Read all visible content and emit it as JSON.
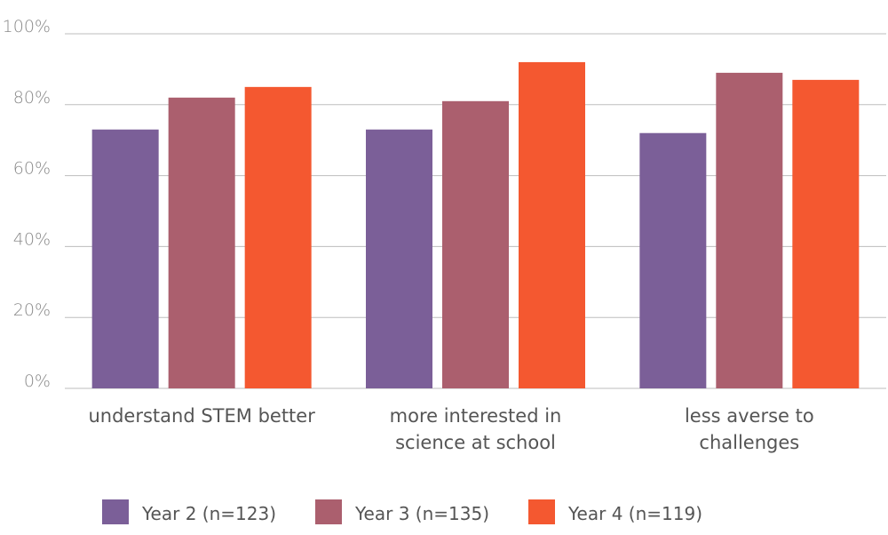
{
  "chart_data": {
    "type": "bar",
    "title": "",
    "xlabel": "",
    "ylabel": "",
    "ylim": [
      0,
      100
    ],
    "yticks": [
      "0%",
      "20%",
      "40%",
      "60%",
      "80%",
      "100%"
    ],
    "ytick_values": [
      0,
      20,
      40,
      60,
      80,
      100
    ],
    "grid": true,
    "legend_position": "bottom",
    "categories": [
      [
        "understand STEM better"
      ],
      [
        "more interested in",
        "science at school"
      ],
      [
        "less averse to",
        "challenges"
      ]
    ],
    "series": [
      {
        "name": "Year 2 (n=123)",
        "color": "#7b5f98",
        "values": [
          73,
          73,
          72
        ]
      },
      {
        "name": "Year 3 (n=135)",
        "color": "#ab5f6e",
        "values": [
          82,
          81,
          89
        ]
      },
      {
        "name": "Year 4 (n=119)",
        "color": "#f45830",
        "values": [
          85,
          92,
          87
        ]
      }
    ]
  }
}
